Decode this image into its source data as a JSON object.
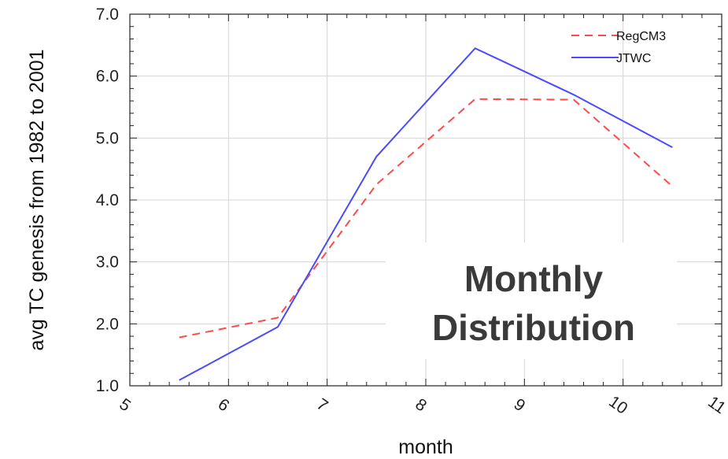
{
  "chart_data": {
    "type": "line",
    "xlabel": "month",
    "ylabel": "avg TC genesis from 1982 to 2001",
    "xlim": [
      5,
      11
    ],
    "ylim": [
      1.0,
      7.0
    ],
    "x_ticks": [
      "5",
      "6",
      "7",
      "8",
      "9",
      "10",
      "11"
    ],
    "y_ticks": [
      "1.0",
      "2.0",
      "3.0",
      "4.0",
      "5.0",
      "6.0",
      "7.0"
    ],
    "x": [
      5.5,
      6.5,
      7.5,
      8.5,
      9.5,
      10.5
    ],
    "series": [
      {
        "name": "RegCM3",
        "values": [
          1.78,
          2.1,
          4.25,
          5.63,
          5.62,
          4.22
        ],
        "color": "#ff4a4a",
        "style": "dashed"
      },
      {
        "name": "JTWC",
        "values": [
          1.09,
          1.95,
          4.7,
          6.45,
          5.7,
          4.85
        ],
        "color": "#4a4aff",
        "style": "solid"
      }
    ],
    "grid": true,
    "legend_position": "top-right",
    "annotation": [
      "Monthly",
      "Distribution"
    ]
  }
}
